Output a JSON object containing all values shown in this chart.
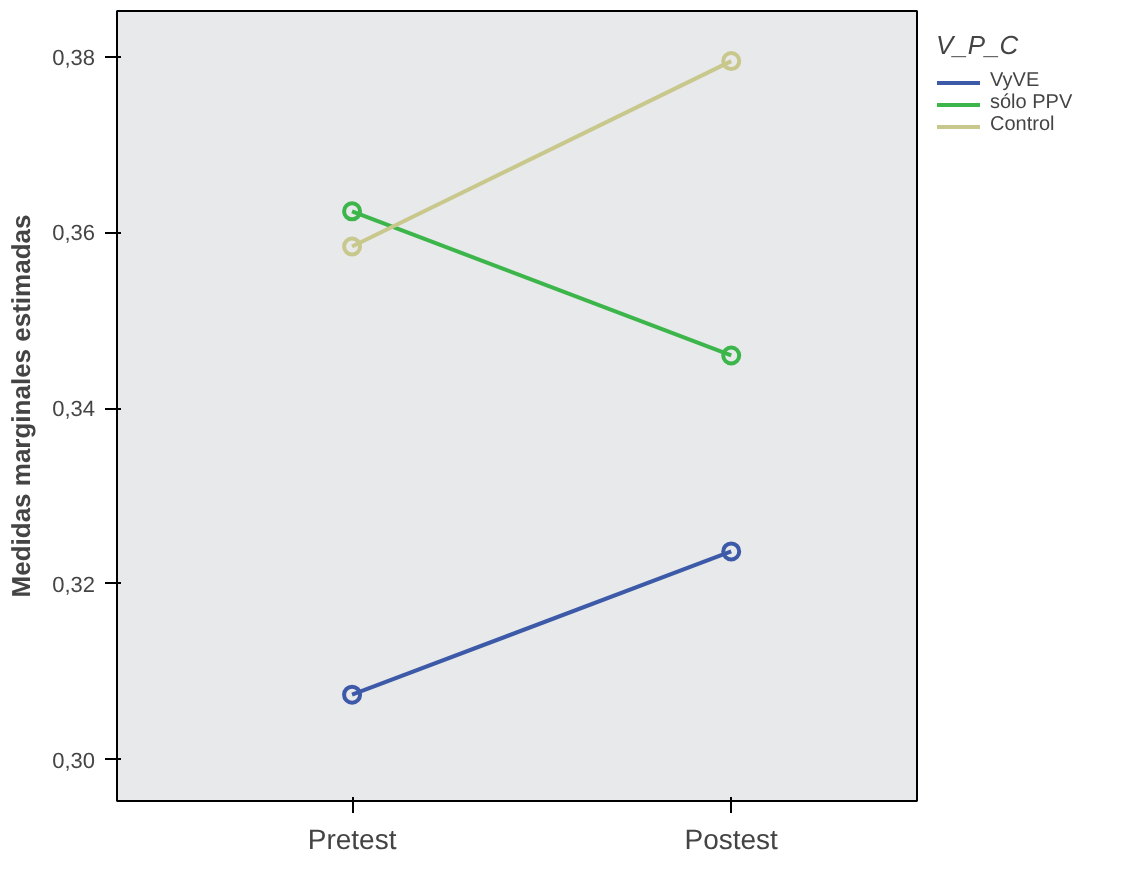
{
  "chart_data": {
    "type": "line",
    "ylabel": "Medidas marginales estimadas",
    "legend_title": "V_P_C",
    "legend": "top right",
    "marker": "circle",
    "line_style": "solid",
    "grid": false,
    "categories": [
      "Pretest",
      "Postest"
    ],
    "ylim": [
      0.2953,
      0.3852
    ],
    "yticks": [
      {
        "value": 0.3,
        "label": "0,30"
      },
      {
        "value": 0.32,
        "label": "0,32"
      },
      {
        "value": 0.34,
        "label": "0,34"
      },
      {
        "value": 0.36,
        "label": "0,36"
      },
      {
        "value": 0.38,
        "label": "0,38"
      }
    ],
    "series": [
      {
        "name": "VyVE",
        "color": "#3d5aa8",
        "values": [
          0.3074,
          0.3237
        ]
      },
      {
        "name": "sólo PPV",
        "color": "#3cb54a",
        "values": [
          0.3624,
          0.346
        ]
      },
      {
        "name": "Control",
        "color": "#c8c88c",
        "values": [
          0.3584,
          0.3795
        ]
      }
    ]
  }
}
